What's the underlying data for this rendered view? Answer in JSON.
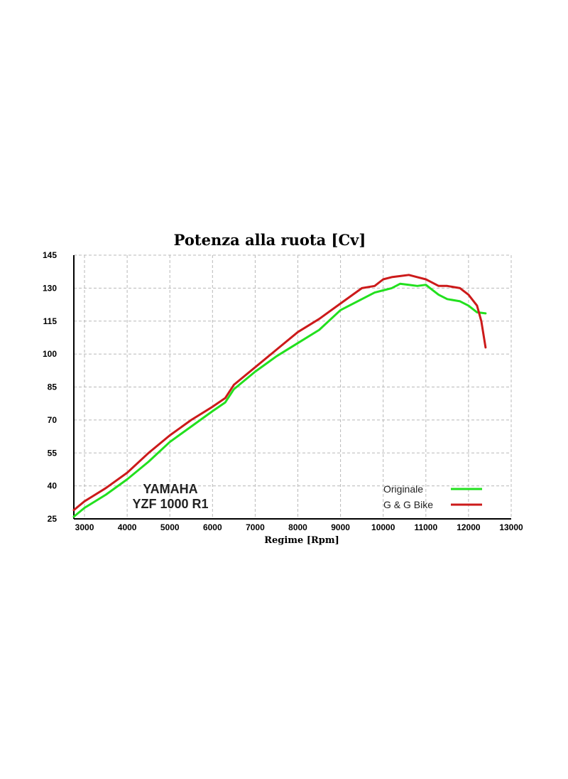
{
  "chart_data": {
    "type": "line",
    "title": "Potenza alla ruota [Cv]",
    "xlabel": "Regime [Rpm]",
    "ylabel": "",
    "xlim": [
      2750,
      13000
    ],
    "ylim": [
      25,
      145
    ],
    "xticks": [
      3000,
      4000,
      5000,
      6000,
      7000,
      8000,
      9000,
      10000,
      11000,
      12000,
      13000
    ],
    "yticks": [
      25,
      40,
      55,
      70,
      85,
      100,
      115,
      130,
      145
    ],
    "grid": true,
    "legend_position": "bottom-right",
    "annotation": [
      "YAMAHA",
      "YZF 1000 R1"
    ],
    "series": [
      {
        "name": "Originale",
        "color": "#22e01e",
        "x": [
          2750,
          3000,
          3500,
          4000,
          4500,
          5000,
          5500,
          6000,
          6300,
          6500,
          7000,
          7500,
          8000,
          8500,
          9000,
          9500,
          9800,
          10000,
          10200,
          10400,
          10600,
          10800,
          11000,
          11100,
          11300,
          11500,
          11800,
          12000,
          12200,
          12400
        ],
        "values": [
          26,
          30,
          36,
          43,
          51,
          60,
          67,
          74,
          78,
          84,
          92,
          99,
          105,
          111,
          120,
          125,
          128,
          129,
          130,
          132,
          131.5,
          131,
          131.5,
          130,
          127,
          125,
          124,
          122,
          119,
          118.5
        ]
      },
      {
        "name": "G & G Bike",
        "color": "#cc1a1a",
        "x": [
          2750,
          3000,
          3500,
          4000,
          4500,
          5000,
          5500,
          6000,
          6300,
          6500,
          7000,
          7500,
          8000,
          8500,
          9000,
          9500,
          9800,
          10000,
          10200,
          10400,
          10600,
          10800,
          11000,
          11100,
          11300,
          11500,
          11800,
          12000,
          12200,
          12300,
          12400
        ],
        "values": [
          29,
          33,
          39,
          46,
          55,
          63,
          70,
          76,
          80,
          86,
          94,
          102,
          110,
          116,
          123,
          130,
          131,
          134,
          135,
          135.5,
          136,
          135,
          134,
          133,
          131,
          131,
          130,
          127,
          122,
          115,
          103
        ]
      }
    ]
  }
}
